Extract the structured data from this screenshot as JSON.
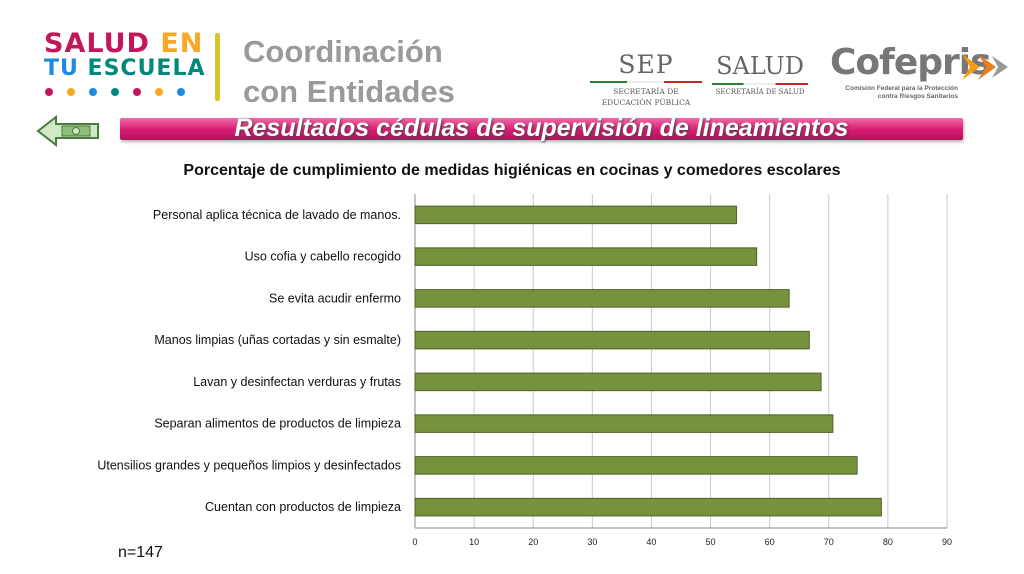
{
  "program_logo": {
    "line1_a": "SALUD",
    "line1_b": "EN",
    "line2_a": "TU",
    "line2_b": "ESCUELA",
    "dot_colors": [
      "#c2185b",
      "#f9a825",
      "#1e88e5",
      "#00897b",
      "#c2185b",
      "#f9a825",
      "#1e88e5"
    ]
  },
  "section_title": "Coordinación con Entidades",
  "logos": {
    "sep": {
      "name": "SEP",
      "sub": "SECRETARÍA DE EDUCACIÓN PÚBLICA"
    },
    "salud": {
      "name": "SALUD",
      "sub": "SECRETARÍA DE SALUD"
    },
    "cofepris": {
      "name": "Cofepris",
      "sub": "Comisión Federal para la Protección contra Riesgos Sanitarios"
    }
  },
  "banner": {
    "text": "Resultados cédulas de supervisión de lineamientos"
  },
  "icons": {
    "back": "money-back-arrow-icon",
    "cofepris_arrow": "double-chevron-right-icon"
  },
  "colors": {
    "banner": "#d81b72",
    "bar": "#76923c",
    "bar_border": "#4f6228"
  },
  "chart_data": {
    "type": "bar",
    "orientation": "horizontal",
    "title": "Porcentaje de cumplimiento de medidas higiénicas en cocinas y comedores escolares",
    "categories": [
      "Personal aplica técnica de lavado de manos.",
      "Uso cofia y cabello recogido",
      "Se evita acudir enfermo",
      "Manos limpias (uñas cortadas y sin esmalte)",
      "Lavan y desinfectan verduras y frutas",
      "Separan alimentos de productos de limpieza",
      "Utensilios grandes y pequeños limpios y desinfectados",
      "Cuentan con productos de limpieza"
    ],
    "values": [
      54.4,
      57.8,
      63.3,
      66.7,
      68.7,
      70.7,
      74.8,
      78.9
    ],
    "xlim": [
      0,
      90
    ],
    "xticks": [
      0,
      10,
      20,
      30,
      40,
      50,
      60,
      70,
      80,
      90
    ],
    "grid": true,
    "xlabel": "",
    "ylabel": ""
  },
  "note": "n=147"
}
